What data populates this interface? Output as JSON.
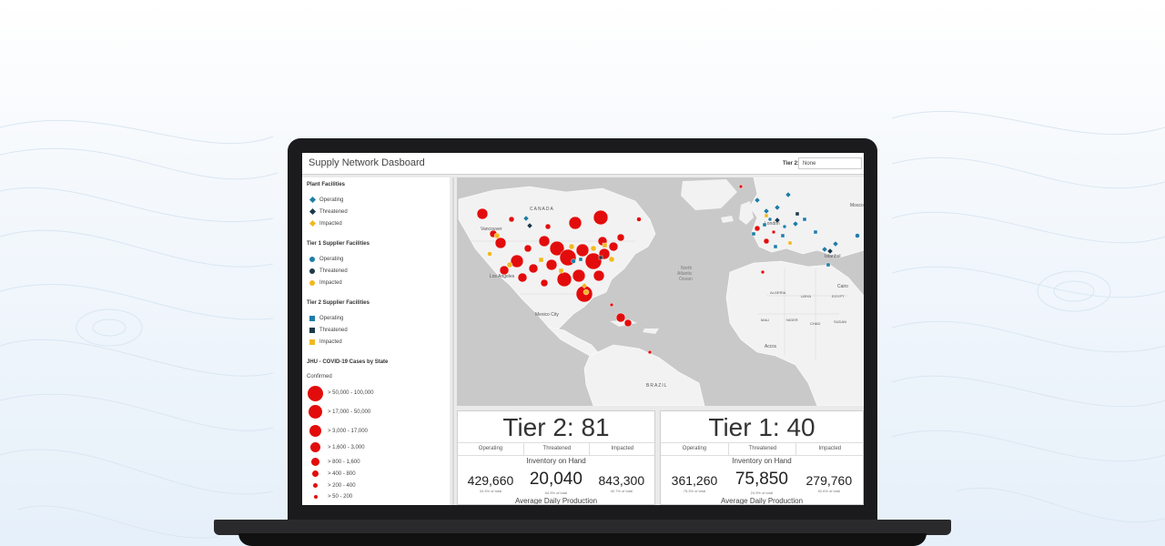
{
  "colors": {
    "accent_teal": "#1f7ea8",
    "threatened": "#1d3a4a",
    "impacted": "#f2b820",
    "covid_red": "#e30c0c"
  },
  "app": {
    "title": "Supply Network Dasboard",
    "tier_filter_label": "Tier 2:",
    "tier_filter_value": "None"
  },
  "legend": {
    "plant": {
      "title": "Plant Facilities",
      "items": [
        {
          "label": "Operating",
          "icon": "diamond-icon"
        },
        {
          "label": "Threatened",
          "icon": "diamond-icon"
        },
        {
          "label": "Impacted",
          "icon": "diamond-icon"
        }
      ]
    },
    "tier1": {
      "title": "Tier 1 Supplier Facilities",
      "items": [
        {
          "label": "Operating",
          "icon": "circle-icon"
        },
        {
          "label": "Threatened",
          "icon": "circle-icon"
        },
        {
          "label": "Impacted",
          "icon": "circle-icon"
        }
      ]
    },
    "tier2": {
      "title": "Tier 2 Supplier Facilities",
      "items": [
        {
          "label": "Operating",
          "icon": "square-icon"
        },
        {
          "label": "Threatened",
          "icon": "square-icon"
        },
        {
          "label": "Impacted",
          "icon": "square-icon"
        }
      ]
    },
    "covid": {
      "title": "JHU - COVID-19 Cases by State",
      "subtitle": "Confirmed",
      "items": [
        {
          "label": "> 50,000 - 100,000"
        },
        {
          "label": "> 17,000 - 50,000"
        },
        {
          "label": "> 3,000 - 17,000"
        },
        {
          "label": "> 1,600 - 3,000"
        },
        {
          "label": "> 800 - 1,600"
        },
        {
          "label": "> 400 - 800"
        },
        {
          "label": "> 200 - 400"
        },
        {
          "label": "> 50 - 200"
        }
      ]
    }
  },
  "map": {
    "labels": {
      "canada": "CANADA",
      "ocean": "North Atlantic Ocean",
      "mexico_city": "Mexico City",
      "brazil": "BRAZIL",
      "accra": "Accra",
      "vancouver": "Vancouver",
      "los_angeles": "Los Angeles",
      "london": "London",
      "istanbul": "Istanbul",
      "moscow": "Mosco",
      "cairo": "Cairo",
      "algeria": "ALGERIA",
      "libya": "LIBYA",
      "egypt": "EGYPT",
      "mali": "MALI",
      "niger": "NIGER",
      "chad": "CHAD",
      "sudan": "SUDAN"
    }
  },
  "cards": [
    {
      "title": "Tier 2: 81",
      "columns": [
        "Operating",
        "Threatened",
        "Impacted"
      ],
      "inventory_label": "Inventory on Hand",
      "values": [
        {
          "num": "429,660",
          "pct": "34.3% of total"
        },
        {
          "num": "20,040",
          "pct": "64.9% of total"
        },
        {
          "num": "843,300",
          "pct": "40.7% of total"
        }
      ],
      "production_label": "Average Daily Production"
    },
    {
      "title": "Tier 1: 40",
      "columns": [
        "Operating",
        "Threatened",
        "Impacted"
      ],
      "inventory_label": "Inventory on Hand",
      "values": [
        {
          "num": "361,260",
          "pct": "75.3% of total"
        },
        {
          "num": "75,850",
          "pct": "24.9% of total"
        },
        {
          "num": "279,760",
          "pct": "52.6% of total"
        }
      ],
      "production_label": "Average Daily Production"
    }
  ]
}
